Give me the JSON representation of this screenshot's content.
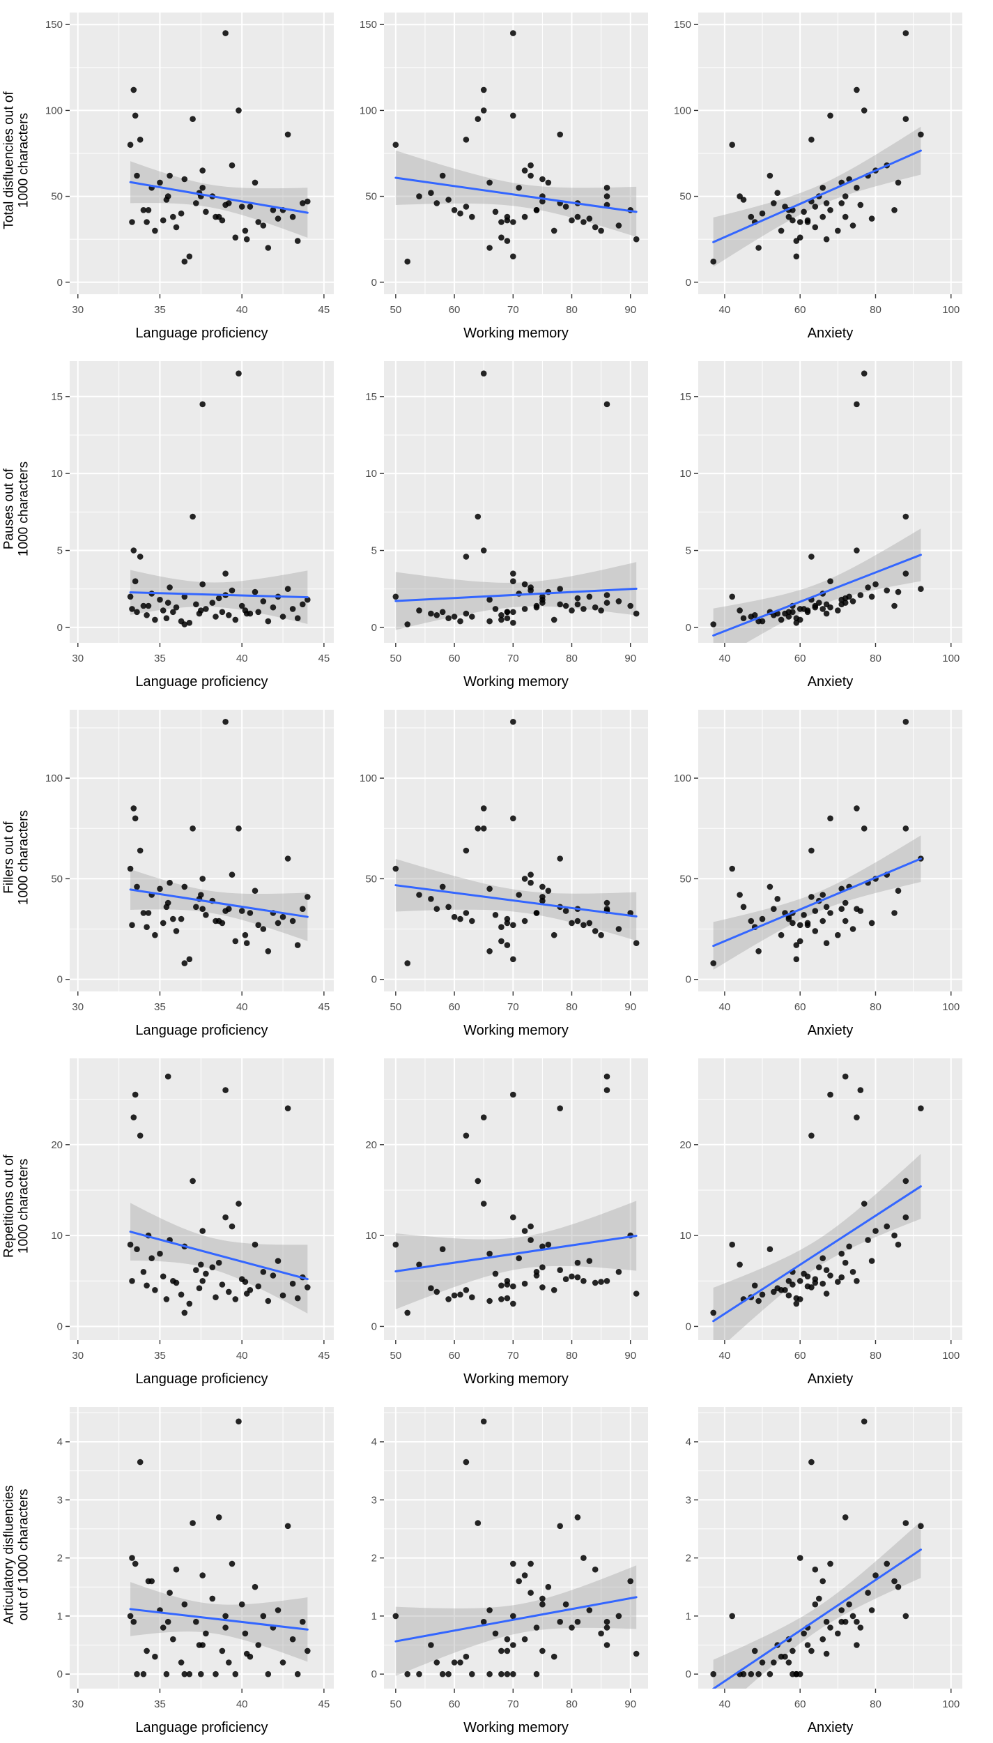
{
  "chart_data": {
    "type": "scatter",
    "layout": "5x3 panel matrix, shared participants dataset, linear smooth with 95% CI ribbon",
    "style": {
      "panel_bg": "#EBEBEB",
      "grid_major": "#FFFFFF",
      "grid_minor": "#FFFFFF",
      "tick_color": "#333333",
      "tick_label_color": "#4d4d4d",
      "axis_title_color": "#000000",
      "point_color": "#000000"
    },
    "smooth": {
      "method": "lm",
      "ci": 0.95,
      "line_color": "#3366FF",
      "ribbon_color": "#999999",
      "ribbon_opacity": 0.35
    },
    "x_vars": [
      {
        "key": "lp",
        "label": "Language proficiency",
        "lim": [
          29.5,
          45.6
        ],
        "ticks": [
          30,
          35,
          40,
          45
        ],
        "minor": [
          32.5,
          37.5,
          42.5
        ]
      },
      {
        "key": "wm",
        "label": "Working memory",
        "lim": [
          48,
          93
        ],
        "ticks": [
          50,
          60,
          70,
          80,
          90
        ],
        "minor": [
          55,
          65,
          75,
          85
        ]
      },
      {
        "key": "anx",
        "label": "Anxiety",
        "lim": [
          33,
          103
        ],
        "ticks": [
          40,
          60,
          80,
          100
        ],
        "minor": [
          50,
          70,
          90
        ]
      }
    ],
    "y_vars": [
      {
        "key": "tot",
        "label": "Total disfluencies out of\n1000 characters",
        "lim": [
          -7,
          157
        ],
        "ticks": [
          0,
          50,
          100,
          150
        ],
        "minor": [
          25,
          75,
          125
        ]
      },
      {
        "key": "pau",
        "label": "Pauses out of\n1000 characters",
        "lim": [
          -1,
          17.3
        ],
        "ticks": [
          0,
          5,
          10,
          15
        ],
        "minor": [
          2.5,
          7.5,
          12.5
        ]
      },
      {
        "key": "fil",
        "label": "Fillers out of\n1000 characters",
        "lim": [
          -6,
          134
        ],
        "ticks": [
          0,
          50,
          100
        ],
        "minor": [
          25,
          75,
          125
        ]
      },
      {
        "key": "rep",
        "label": "Repetitions out of\n1000 characters",
        "lim": [
          -1.5,
          29.5
        ],
        "ticks": [
          0,
          10,
          20
        ],
        "minor": [
          5,
          15,
          25
        ]
      },
      {
        "key": "art",
        "label": "Articulatory disfluencies\nout of 1000 characters",
        "lim": [
          -0.25,
          4.6
        ],
        "ticks": [
          0,
          1,
          2,
          3,
          4
        ],
        "minor": [
          0.5,
          1.5,
          2.5,
          3.5,
          4.5
        ]
      }
    ],
    "columns_key": [
      "lp",
      "wm",
      "anx",
      "tot",
      "pau",
      "fil",
      "rep",
      "art"
    ],
    "points": [
      [
        33.2,
        50,
        42,
        80,
        2.0,
        55,
        9.0,
        1.0
      ],
      [
        33.3,
        82,
        60,
        35,
        1.2,
        27,
        5.0,
        2.0
      ],
      [
        33.4,
        65,
        75,
        112,
        5.0,
        85,
        23.0,
        0.9
      ],
      [
        33.5,
        70,
        68,
        97,
        3.0,
        80,
        25.5,
        1.9
      ],
      [
        33.6,
        58,
        52,
        62,
        1.0,
        46,
        8.5,
        0.0
      ],
      [
        33.8,
        62,
        63,
        83,
        4.6,
        64,
        21.0,
        3.65
      ],
      [
        34.0,
        74,
        58,
        42,
        1.4,
        33,
        6.0,
        0.0
      ],
      [
        34.2,
        68,
        48,
        35,
        0.8,
        26,
        4.5,
        0.4
      ],
      [
        34.3,
        90,
        85,
        42,
        1.4,
        33,
        10.0,
        1.6
      ],
      [
        34.5,
        71,
        66,
        55,
        2.2,
        42,
        7.5,
        1.6
      ],
      [
        34.7,
        77,
        55,
        30,
        0.5,
        22,
        4.0,
        0.3
      ],
      [
        35.0,
        66,
        71,
        58,
        1.8,
        45,
        8.0,
        1.1
      ],
      [
        35.2,
        80,
        62,
        36,
        1.1,
        28,
        5.5,
        0.8
      ],
      [
        35.4,
        59,
        45,
        48,
        0.6,
        36,
        3.0,
        0.0
      ],
      [
        35.5,
        86,
        72,
        50,
        1.6,
        38,
        27.5,
        0.9
      ],
      [
        35.6,
        73,
        78,
        62,
        2.6,
        48,
        9.5,
        1.4
      ],
      [
        35.8,
        69,
        57,
        38,
        1.0,
        30,
        5.0,
        0.6
      ],
      [
        36.0,
        84,
        64,
        32,
        1.3,
        24,
        4.8,
        1.8
      ],
      [
        36.3,
        61,
        50,
        40,
        0.4,
        30,
        3.5,
        0.2
      ],
      [
        36.5,
        52,
        37,
        12,
        0.2,
        8,
        1.5,
        0.0
      ],
      [
        36.5,
        75,
        73,
        60,
        2.0,
        46,
        8.8,
        1.2
      ],
      [
        36.8,
        70,
        59,
        15,
        0.3,
        10,
        2.5,
        0.0
      ],
      [
        37.0,
        64,
        88,
        95,
        7.2,
        75,
        16.0,
        2.6
      ],
      [
        37.2,
        78,
        67,
        46,
        1.5,
        36,
        6.2,
        0.9
      ],
      [
        37.4,
        56,
        54,
        52,
        0.9,
        40,
        4.2,
        0.5
      ],
      [
        37.5,
        54,
        44,
        50,
        1.1,
        42,
        6.8,
        0.0
      ],
      [
        37.6,
        86,
        75,
        55,
        14.5,
        35,
        5.0,
        0.5
      ],
      [
        37.6,
        72,
        80,
        65,
        2.8,
        50,
        10.5,
        1.7
      ],
      [
        37.8,
        67,
        61,
        41,
        1.2,
        32,
        5.8,
        0.7
      ],
      [
        38.2,
        75,
        65,
        50,
        1.6,
        39,
        6.5,
        1.3
      ],
      [
        38.4,
        63,
        47,
        38,
        0.7,
        29,
        3.2,
        0.0
      ],
      [
        38.6,
        81,
        72,
        38,
        1.9,
        29,
        7.0,
        2.7
      ],
      [
        38.8,
        69,
        58,
        36,
        1.0,
        28,
        4.6,
        0.4
      ],
      [
        39.0,
        70,
        88,
        145,
        3.5,
        128,
        12.0,
        1.0
      ],
      [
        39.0,
        86,
        76,
        45,
        2.1,
        34,
        26.0,
        0.8
      ],
      [
        39.2,
        57,
        53,
        46,
        0.8,
        35,
        3.8,
        0.2
      ],
      [
        39.4,
        73,
        83,
        68,
        2.4,
        52,
        11.0,
        1.9
      ],
      [
        39.6,
        68,
        60,
        26,
        0.5,
        19,
        3.0,
        0.0
      ],
      [
        39.8,
        65,
        77,
        100,
        16.5,
        75,
        13.5,
        4.35
      ],
      [
        40.0,
        79,
        64,
        44,
        1.4,
        34,
        5.2,
        1.2
      ],
      [
        40.2,
        85,
        70,
        30,
        1.1,
        22,
        4.9,
        0.7
      ],
      [
        40.3,
        91,
        67,
        25,
        0.9,
        18,
        3.6,
        0.35
      ],
      [
        40.5,
        62,
        56,
        44,
        0.9,
        33,
        4.0,
        0.3
      ],
      [
        40.8,
        76,
        86,
        58,
        2.3,
        44,
        9.0,
        1.5
      ],
      [
        41.0,
        70,
        62,
        35,
        1.0,
        27,
        4.4,
        0.5
      ],
      [
        41.3,
        88,
        74,
        33,
        1.7,
        25,
        6.0,
        1.0
      ],
      [
        41.6,
        66,
        49,
        20,
        0.4,
        14,
        2.8,
        0.0
      ],
      [
        41.9,
        74,
        68,
        42,
        1.3,
        33,
        5.6,
        0.8
      ],
      [
        42.2,
        83,
        79,
        37,
        2.0,
        28,
        7.2,
        1.1
      ],
      [
        42.5,
        60,
        57,
        42,
        0.7,
        31,
        3.4,
        0.2
      ],
      [
        42.8,
        78,
        92,
        86,
        2.5,
        60,
        24.0,
        2.55
      ],
      [
        43.1,
        72,
        66,
        38,
        1.2,
        29,
        4.7,
        0.6
      ],
      [
        43.4,
        69,
        59,
        24,
        0.6,
        17,
        3.1,
        0.0
      ],
      [
        43.7,
        81,
        71,
        46,
        1.5,
        35,
        5.4,
        0.9
      ],
      [
        44.0,
        75,
        63,
        47,
        1.8,
        41,
        4.3,
        0.4
      ]
    ]
  }
}
